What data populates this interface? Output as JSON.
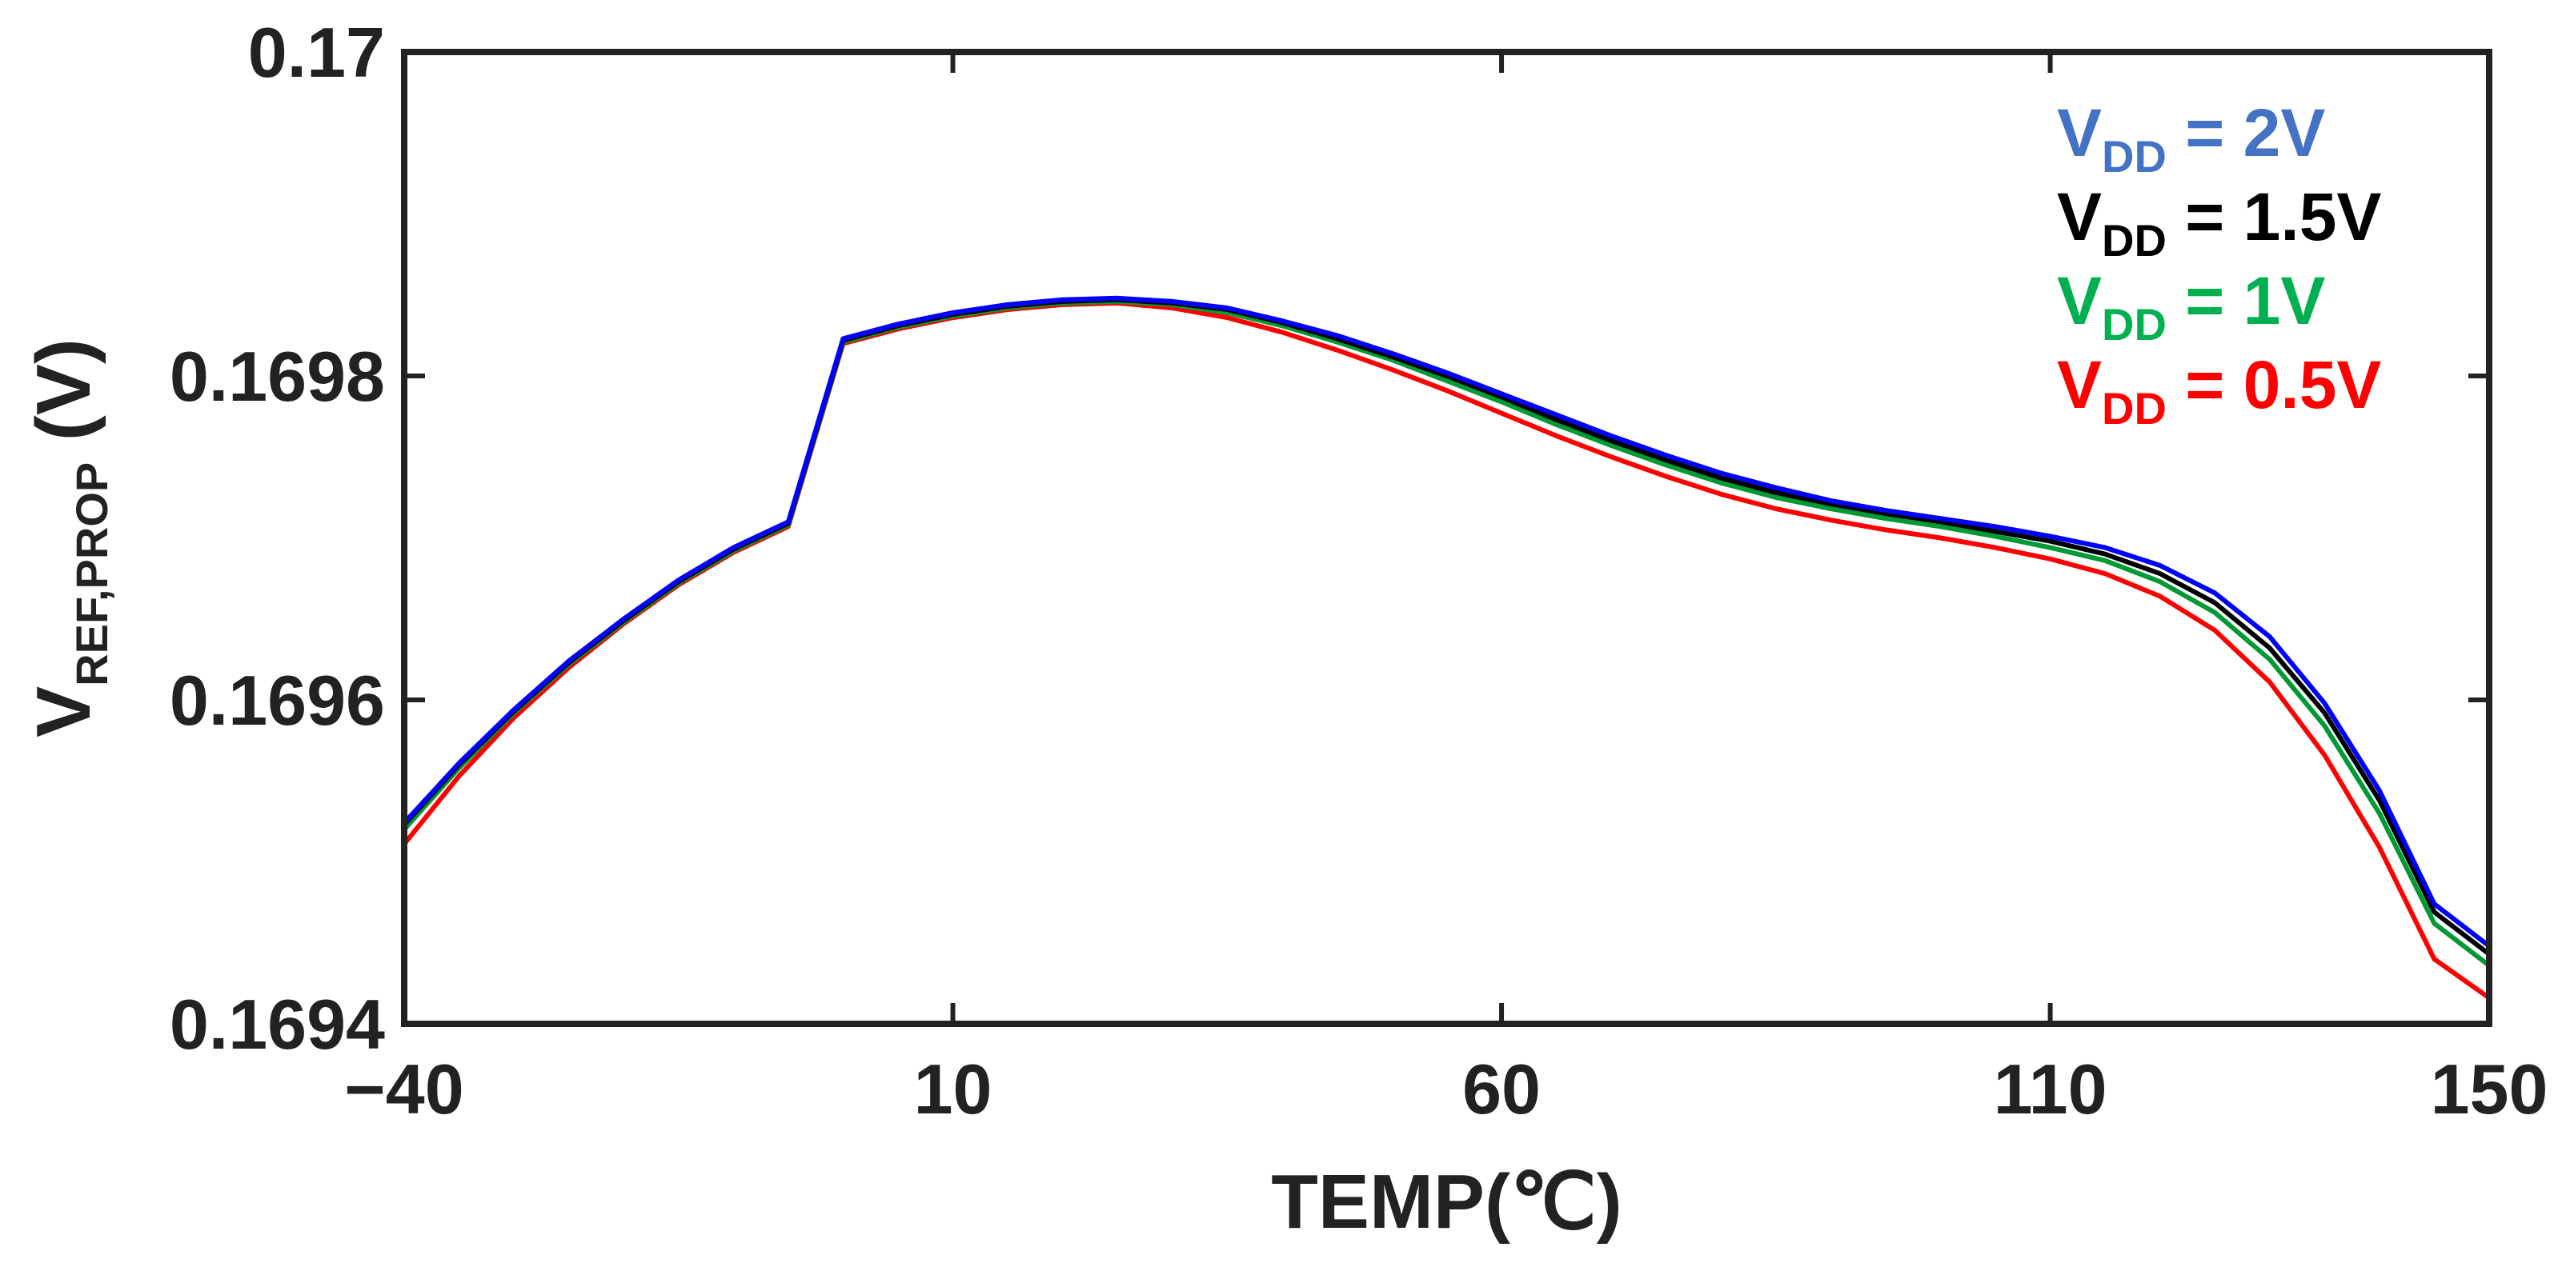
{
  "chart_data": {
    "type": "line",
    "xlabel": "TEMP(℃)",
    "ylabel": {
      "main": "V",
      "subscript": "REF,PROP",
      "unit": "(V)"
    },
    "xlim": [
      -40,
      150
    ],
    "ylim": [
      0.1694,
      0.17
    ],
    "xticks": [
      -40,
      10,
      60,
      110,
      150
    ],
    "xtick_labels": [
      "−40",
      "10",
      "60",
      "110",
      "150"
    ],
    "yticks": [
      0.1694,
      0.1696,
      0.1698,
      0.17
    ],
    "ytick_labels": [
      "0.1694",
      "0.1696",
      "0.1698",
      "0.17"
    ],
    "grid": false,
    "legend_position": "top-right",
    "x": [
      -40,
      -35,
      -30,
      -25,
      -20,
      -15,
      -10,
      -5,
      0,
      5,
      10,
      15,
      20,
      25,
      30,
      35,
      40,
      45,
      50,
      55,
      60,
      65,
      70,
      75,
      80,
      85,
      90,
      95,
      100,
      105,
      110,
      115,
      120,
      125,
      130,
      135,
      140,
      145,
      150
    ],
    "series": [
      {
        "name": "V_DD = 2V",
        "legend": {
          "main": "V",
          "sub": "DD",
          "rest": " = 2V"
        },
        "color": "#0000ff",
        "legend_color": "#4472c4",
        "values": [
          0.169524,
          0.169561,
          0.169594,
          0.169624,
          0.16965,
          0.169674,
          0.169694,
          0.16971,
          0.169823,
          0.169832,
          0.169839,
          0.169844,
          0.169847,
          0.169848,
          0.169846,
          0.169842,
          0.169834,
          0.169825,
          0.169814,
          0.169802,
          0.169789,
          0.169776,
          0.169763,
          0.169751,
          0.16974,
          0.169731,
          0.169723,
          0.169717,
          0.169712,
          0.169707,
          0.169701,
          0.169694,
          0.169683,
          0.169666,
          0.169639,
          0.169598,
          0.169544,
          0.169474,
          0.169448
        ]
      },
      {
        "name": "V_DD = 1.5V",
        "legend": {
          "main": "V",
          "sub": "DD",
          "rest": " = 1.5V"
        },
        "color": "#000000",
        "legend_color": "#000000",
        "values": [
          0.169523,
          0.16956,
          0.169593,
          0.169623,
          0.169649,
          0.169673,
          0.169693,
          0.169709,
          0.169822,
          0.169831,
          0.169838,
          0.169843,
          0.169846,
          0.169847,
          0.169845,
          0.169841,
          0.169833,
          0.169823,
          0.169812,
          0.1698,
          0.169787,
          0.169773,
          0.16976,
          0.169748,
          0.169737,
          0.169728,
          0.169721,
          0.169715,
          0.16971,
          0.169704,
          0.169698,
          0.16969,
          0.169678,
          0.16966,
          0.169632,
          0.169592,
          0.169538,
          0.169469,
          0.169443
        ]
      },
      {
        "name": "V_DD = 1V",
        "legend": {
          "main": "V",
          "sub": "DD",
          "rest": " = 1V"
        },
        "color": "#009933",
        "legend_color": "#00b050",
        "values": [
          0.16952,
          0.169558,
          0.169592,
          0.169622,
          0.169648,
          0.169672,
          0.169692,
          0.169708,
          0.169821,
          0.16983,
          0.169837,
          0.169842,
          0.169845,
          0.169846,
          0.169844,
          0.169839,
          0.169831,
          0.169821,
          0.16981,
          0.169797,
          0.169784,
          0.16977,
          0.169757,
          0.169745,
          0.169734,
          0.169725,
          0.169718,
          0.169712,
          0.169707,
          0.169701,
          0.169694,
          0.169686,
          0.169673,
          0.169654,
          0.169625,
          0.169584,
          0.16953,
          0.169462,
          0.169436
        ]
      },
      {
        "name": "V_DD = 0.5V",
        "legend": {
          "main": "V",
          "sub": "DD",
          "rest": " = 0.5V"
        },
        "color": "#ff0000",
        "legend_color": "#ff0000",
        "values": [
          0.169511,
          0.169553,
          0.169589,
          0.16962,
          0.169647,
          0.169671,
          0.169691,
          0.169707,
          0.16982,
          0.169829,
          0.169836,
          0.169841,
          0.169844,
          0.169845,
          0.169842,
          0.169836,
          0.169827,
          0.169816,
          0.169804,
          0.169791,
          0.169777,
          0.169763,
          0.16975,
          0.169738,
          0.169727,
          0.169718,
          0.169711,
          0.169705,
          0.1697,
          0.169694,
          0.169687,
          0.169678,
          0.169664,
          0.169643,
          0.169611,
          0.169566,
          0.169509,
          0.16944,
          0.169416
        ]
      }
    ]
  }
}
